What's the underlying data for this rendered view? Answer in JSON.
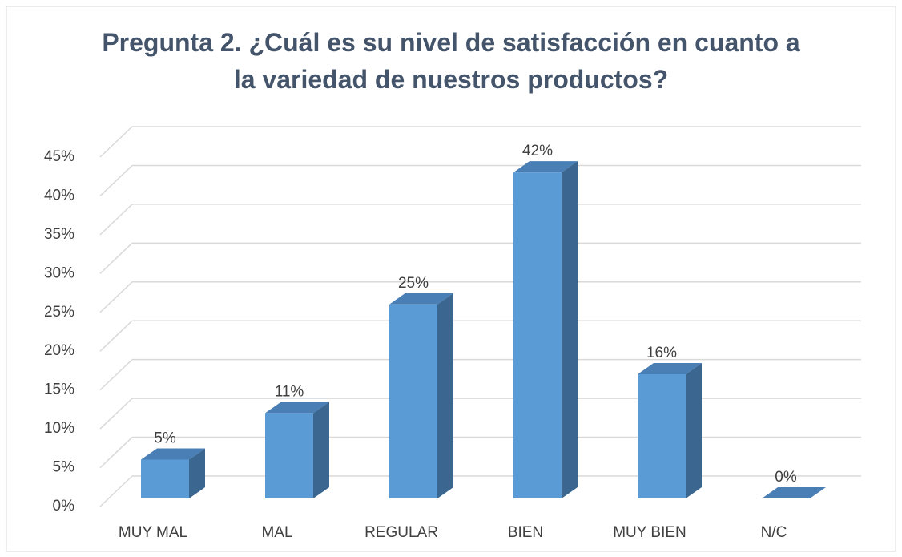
{
  "chart_data": {
    "type": "bar3d",
    "title": "Pregunta 2. ¿Cuál es su nivel de satisfacción en cuanto a la variedad de nuestros productos?",
    "categories": [
      "MUY MAL",
      "MAL",
      "REGULAR",
      "BIEN",
      "MUY BIEN",
      "N/C"
    ],
    "values": [
      5,
      11,
      25,
      42,
      16,
      0
    ],
    "value_labels": [
      "5%",
      "11%",
      "25%",
      "42%",
      "16%",
      "0%"
    ],
    "color": "#5b9bd5",
    "ylim": [
      0,
      45
    ],
    "yticks": [
      {
        "value": 0,
        "label": "0%"
      },
      {
        "value": 5,
        "label": "5%"
      },
      {
        "value": 10,
        "label": "10%"
      },
      {
        "value": 15,
        "label": "15%"
      },
      {
        "value": 20,
        "label": "20%"
      },
      {
        "value": 25,
        "label": "25%"
      },
      {
        "value": 30,
        "label": "30%"
      },
      {
        "value": 35,
        "label": "35%"
      },
      {
        "value": 40,
        "label": "40%"
      },
      {
        "value": 45,
        "label": "45%"
      }
    ],
    "grid": true
  }
}
